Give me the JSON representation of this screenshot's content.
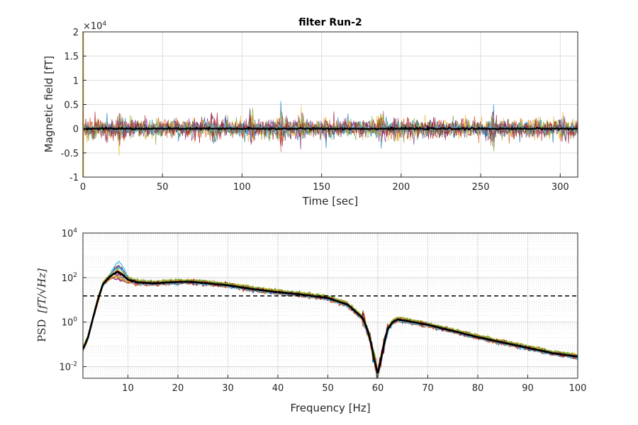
{
  "figure": {
    "title": "filter Run-2"
  },
  "chart_data": [
    {
      "type": "line",
      "title": "filter Run-2",
      "xlabel": "Time [sec]",
      "ylabel": "Magnetic field [fT]",
      "xlim": [
        0,
        311
      ],
      "ylim": [
        -10000,
        20000
      ],
      "y_exponent_label": "×10",
      "y_exponent_power": "4",
      "xticks": [
        0,
        50,
        100,
        150,
        200,
        250,
        300
      ],
      "xtick_labels": [
        "0",
        "50",
        "100",
        "150",
        "200",
        "250",
        "300"
      ],
      "yticks": [
        -10000,
        -5000,
        0,
        5000,
        10000,
        15000,
        20000
      ],
      "ytick_labels": [
        "-1",
        "-0.5",
        "0",
        "0.5",
        "1",
        "1.5",
        "2"
      ],
      "grid": true,
      "noise_amplitude": 2200,
      "bursts": [
        {
          "t": 24,
          "amp": 4400
        },
        {
          "t": 81,
          "amp": 3800
        },
        {
          "t": 106,
          "amp": 4200
        },
        {
          "t": 125,
          "amp": 5800
        },
        {
          "t": 137,
          "amp": 4000
        },
        {
          "t": 188,
          "amp": 4300
        },
        {
          "t": 258,
          "amp": 5200
        },
        {
          "t": 302,
          "amp": 3600
        }
      ],
      "start_artifact": {
        "t": 0,
        "max": 20000,
        "min": -10000
      },
      "mean_trace_color": "#000000"
    },
    {
      "type": "line",
      "xlabel": "Frequency [Hz]",
      "ylabel_prefix": "PSD",
      "ylabel_math": "[fT/√Hz]",
      "y_scale": "log",
      "xlim": [
        1,
        100
      ],
      "ylim": [
        0.003,
        10000
      ],
      "xticks": [
        10,
        20,
        30,
        40,
        50,
        60,
        70,
        80,
        90,
        100
      ],
      "xtick_labels": [
        "10",
        "20",
        "30",
        "40",
        "50",
        "60",
        "70",
        "80",
        "90",
        "100"
      ],
      "yticks": [
        0.01,
        1,
        100,
        10000
      ],
      "ytick_base": "10",
      "ytick_powers": [
        "-2",
        "0",
        "2",
        "4"
      ],
      "grid": true,
      "minor_grid": true,
      "reference_line": {
        "y": 15,
        "style": "dashed",
        "color": "#000000"
      },
      "mean_series": {
        "name": "mean",
        "x": [
          1,
          2,
          3,
          4,
          5,
          6,
          7,
          8,
          9,
          10,
          12,
          15,
          18,
          22,
          26,
          30,
          35,
          40,
          45,
          50,
          54,
          57,
          58,
          58.7,
          59.3,
          60,
          60.6,
          61.3,
          62,
          63,
          64,
          66,
          70,
          75,
          80,
          85,
          90,
          95,
          100
        ],
        "y": [
          0.06,
          0.2,
          1.5,
          10,
          50,
          90,
          140,
          180,
          130,
          80,
          60,
          55,
          60,
          65,
          55,
          45,
          30,
          22,
          17,
          12,
          6,
          1.5,
          0.4,
          0.1,
          0.02,
          0.005,
          0.02,
          0.12,
          0.5,
          1.0,
          1.3,
          1.1,
          0.75,
          0.4,
          0.21,
          0.12,
          0.07,
          0.04,
          0.028
        ]
      },
      "channel_colors": [
        "#0072BD",
        "#D95319",
        "#EDB120",
        "#7E2F8E",
        "#77AC30",
        "#4DBEEE",
        "#A2142F"
      ]
    }
  ]
}
